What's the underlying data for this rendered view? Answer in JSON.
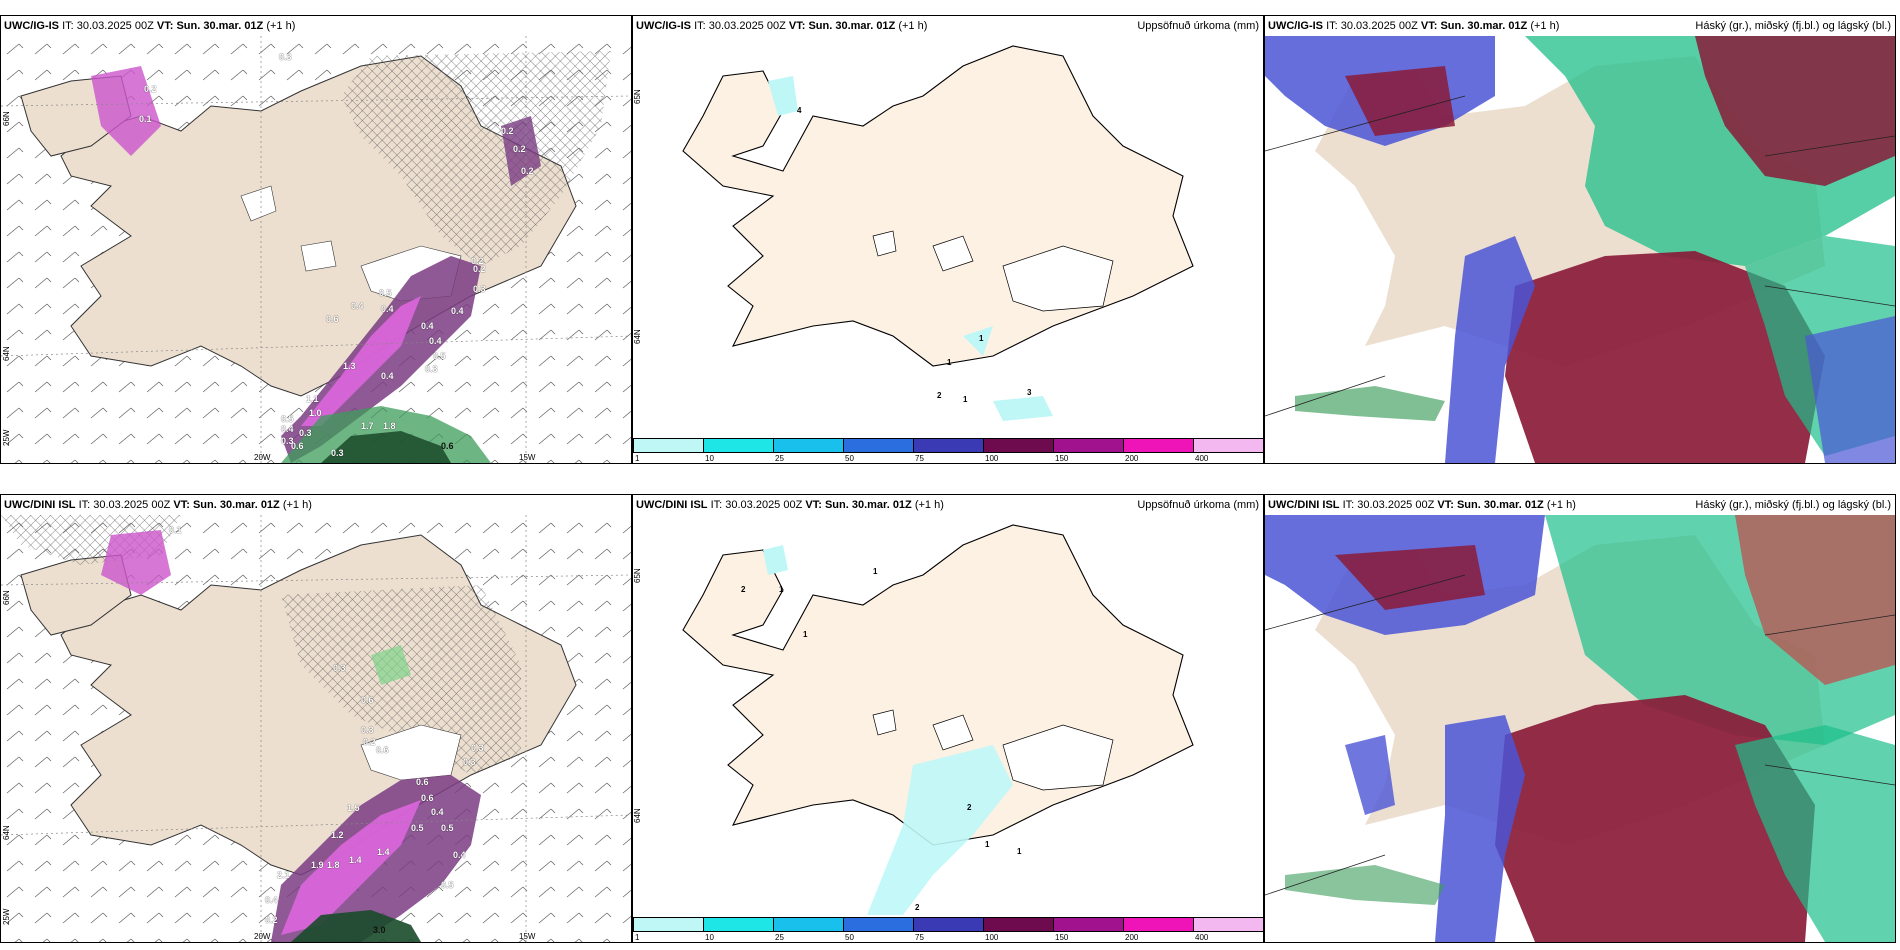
{
  "rows": [
    {
      "model": "UWC/IG-IS",
      "issue_label": "IT:",
      "issue_time": "30.03.2025 00Z",
      "valid_label": "VT:",
      "valid_time": "Sun. 30.mar. 01Z",
      "lead": "(+1 h)",
      "wind_panel": {
        "lat_labels": [
          "66N",
          "64N",
          "25W"
        ],
        "lon_labels": [
          "20W",
          "15W"
        ],
        "contour_values": [
          "0.3",
          "0.2",
          "0.2",
          "0.2",
          "0.2",
          "0.1",
          "0.2",
          "0.5",
          "0.4",
          "0.6",
          "0.4",
          "0.4",
          "0.4",
          "0.3",
          "0.2",
          "0.4",
          "0.5",
          "0.3",
          "1.3",
          "0.4",
          "1.1",
          "1.0",
          "1.7",
          "1.8",
          "0.3",
          "0.6",
          "0.5",
          "0.4",
          "0.3",
          "0.3",
          "0.6"
        ]
      },
      "precip_panel": {
        "product": "Uppsöfnuð úrkoma (mm)",
        "lat_labels": [
          "65N",
          "64N"
        ],
        "point_values": [
          "4",
          "1",
          "1",
          "2",
          "1",
          "3"
        ]
      },
      "cloud_panel": {
        "product": "Háský (gr.), miðský (fj.bl.) og lágský (bl.)"
      }
    },
    {
      "model": "UWC/DINI ISL",
      "issue_label": "IT:",
      "issue_time": "30.03.2025 00Z",
      "valid_label": "VT:",
      "valid_time": "Sun. 30.mar. 01Z",
      "lead": "(+1 h)",
      "wind_panel": {
        "lat_labels": [
          "66N",
          "64N",
          "25W"
        ],
        "lon_labels": [
          "20W",
          "15W"
        ],
        "contour_values": [
          "0.1",
          "0.6",
          "0.3",
          "0.3",
          "0.3",
          "0.6",
          "0.3",
          "0.2",
          "0.6",
          "0.6",
          "0.4",
          "0.5",
          "0.5",
          "0.4",
          "1.5",
          "1.2",
          "1.9",
          "1.8",
          "1.4",
          "1.4",
          "2.1",
          "0.4",
          "0.2",
          "0.5",
          "3.0"
        ]
      },
      "precip_panel": {
        "product": "Uppsöfnuð úrkoma (mm)",
        "lat_labels": [
          "65N",
          "64N"
        ],
        "point_values": [
          "1",
          "2",
          "1",
          "1",
          "2",
          "1",
          "1",
          "2"
        ]
      },
      "cloud_panel": {
        "product": "Háský (gr.), miðský (fj.bl.) og lágský (bl.)"
      }
    }
  ],
  "precip_colorbar": {
    "labels": [
      "1",
      "10",
      "25",
      "50",
      "75",
      "100",
      "150",
      "200",
      "400"
    ],
    "colors": [
      "#bff7f7",
      "#1ee6e6",
      "#1ac0ec",
      "#2a6ee0",
      "#3a3ab4",
      "#6e0a4e",
      "#a0128e",
      "#ef14b8",
      "#f4b8f0"
    ]
  },
  "colors": {
    "land": "#ecdfd0",
    "land_precip": "#fdf1e4",
    "snow": "#ffffff",
    "magenta": "#cc55cc",
    "purple": "#7a3c82",
    "green": "#3c9c5a",
    "cloud_high": "#1dbf8a",
    "cloud_mid": "#8a1b38",
    "cloud_low": "#4b55d6"
  }
}
